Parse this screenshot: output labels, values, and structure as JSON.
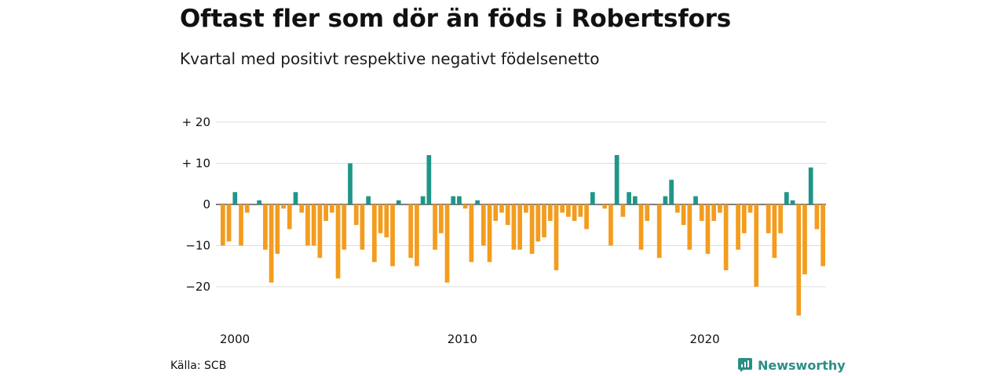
{
  "title": "Oftast fler som dör än föds i Robertsfors",
  "subtitle": "Kvartal med positivt respektive negativt födelsenetto",
  "source": "Källa: SCB",
  "brand": {
    "name": "Newsworthy",
    "icon": "chart-bubble-icon"
  },
  "colors": {
    "positive": "#1f9688",
    "negative": "#f39c1e",
    "grid": "#dddddd"
  },
  "chart_data": {
    "type": "bar",
    "xlabel": "",
    "ylabel": "",
    "ylim": [
      -28,
      22
    ],
    "yticks": [
      20,
      10,
      0,
      -10,
      -20
    ],
    "ytick_labels": [
      "+ 20",
      "+ 10",
      "0",
      "−10",
      "−20"
    ],
    "xtick_labels": [
      {
        "label": "2000",
        "index": 0
      },
      {
        "label": "2010",
        "index": 40
      },
      {
        "label": "2020",
        "index": 80
      }
    ],
    "grid": true,
    "start": "2000 Q1",
    "values": [
      -10,
      -9,
      3,
      -10,
      -2,
      0,
      1,
      -11,
      -19,
      -12,
      -1,
      -6,
      3,
      -2,
      -10,
      -10,
      -13,
      -4,
      -2,
      -18,
      -11,
      10,
      -5,
      -11,
      2,
      -14,
      -7,
      -8,
      -15,
      1,
      0,
      -13,
      -15,
      2,
      12,
      -11,
      -7,
      -19,
      2,
      2,
      -1,
      -14,
      1,
      -10,
      -14,
      -4,
      -2,
      -5,
      -11,
      -11,
      -2,
      -12,
      -9,
      -8,
      -4,
      -16,
      -2,
      -3,
      -4,
      -3,
      -6,
      3,
      0,
      -1,
      -10,
      12,
      -3,
      3,
      2,
      -11,
      -4,
      0,
      -13,
      2,
      6,
      -2,
      -5,
      -11,
      2,
      -4,
      -12,
      -4,
      -2,
      -16,
      0,
      -11,
      -7,
      -2,
      -20,
      0,
      -7,
      -13,
      -7,
      3,
      1,
      -27,
      -17,
      9,
      -6,
      -15
    ]
  }
}
